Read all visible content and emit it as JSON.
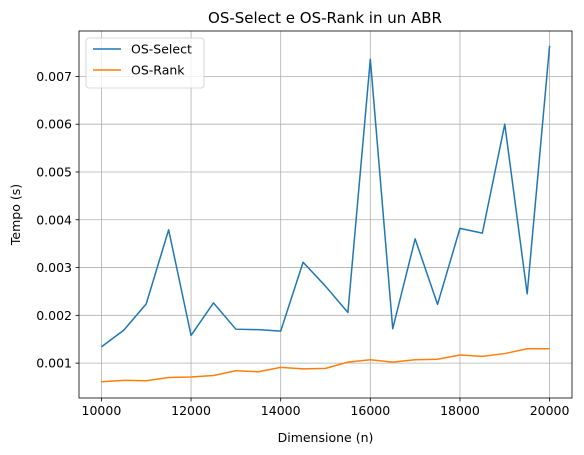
{
  "chart_data": {
    "type": "line",
    "title": "OS-Select e OS-Rank in un ABR",
    "xlabel": "Dimensione (n)",
    "ylabel": "Tempo (s)",
    "xlim": [
      9500,
      20500
    ],
    "ylim": [
      0.00027,
      0.00795
    ],
    "xticks": [
      10000,
      12000,
      14000,
      16000,
      18000,
      20000
    ],
    "yticks": [
      0.001,
      0.002,
      0.003,
      0.004,
      0.005,
      0.006,
      0.007
    ],
    "grid": true,
    "legend_position": "upper-left",
    "x": [
      10000,
      10500,
      11000,
      11500,
      12000,
      12500,
      13000,
      13500,
      14000,
      14500,
      15000,
      15500,
      16000,
      16500,
      17000,
      17500,
      18000,
      18500,
      19000,
      19500,
      20000
    ],
    "series": [
      {
        "name": "OS-Select",
        "color": "#1f77b4",
        "values": [
          0.00134,
          0.00169,
          0.00224,
          0.00379,
          0.00158,
          0.00226,
          0.00171,
          0.0017,
          0.00167,
          0.00311,
          0.00261,
          0.00206,
          0.00736,
          0.00172,
          0.0036,
          0.00223,
          0.00382,
          0.00372,
          0.006,
          0.00245,
          0.00764
        ]
      },
      {
        "name": "OS-Rank",
        "color": "#ff7f0e",
        "values": [
          0.00061,
          0.00064,
          0.00063,
          0.0007,
          0.00071,
          0.00074,
          0.00084,
          0.00082,
          0.00091,
          0.00088,
          0.00089,
          0.00102,
          0.00107,
          0.00102,
          0.00107,
          0.00108,
          0.00117,
          0.00114,
          0.0012,
          0.0013,
          0.0013
        ]
      }
    ]
  }
}
